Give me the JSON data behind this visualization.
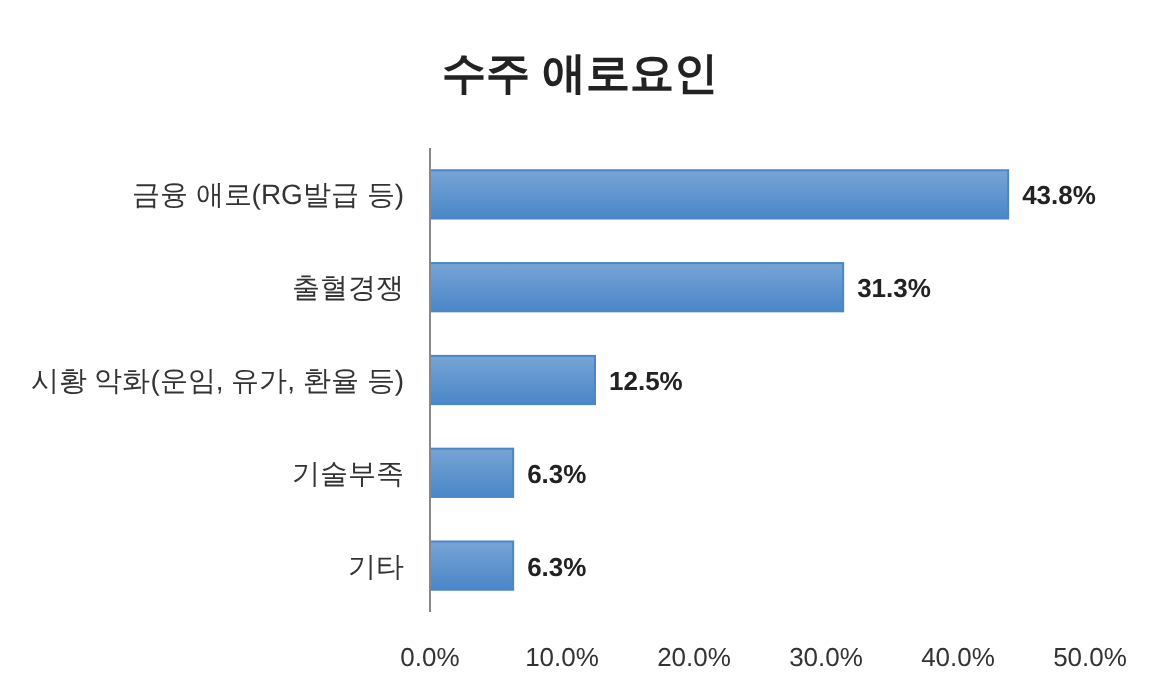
{
  "chart_data": {
    "type": "bar",
    "orientation": "horizontal",
    "title": "수주 애로요인",
    "categories": [
      "금융 애로(RG발급 등)",
      "출혈경쟁",
      "시황 악화(운임, 유가, 환율 등)",
      "기술부족",
      "기타"
    ],
    "values": [
      43.8,
      31.3,
      12.5,
      6.3,
      6.3
    ],
    "value_labels": [
      "43.8%",
      "31.3%",
      "12.5%",
      "6.3%",
      "6.3%"
    ],
    "color": "#4a86c8",
    "xlim": [
      0,
      50
    ],
    "xticks": [
      {
        "value": 0,
        "label": "0.0%"
      },
      {
        "value": 10,
        "label": "10.0%"
      },
      {
        "value": 20,
        "label": "20.0%"
      },
      {
        "value": 30,
        "label": "30.0%"
      },
      {
        "value": 40,
        "label": "40.0%"
      },
      {
        "value": 50,
        "label": "50.0%"
      }
    ],
    "grid": false
  }
}
